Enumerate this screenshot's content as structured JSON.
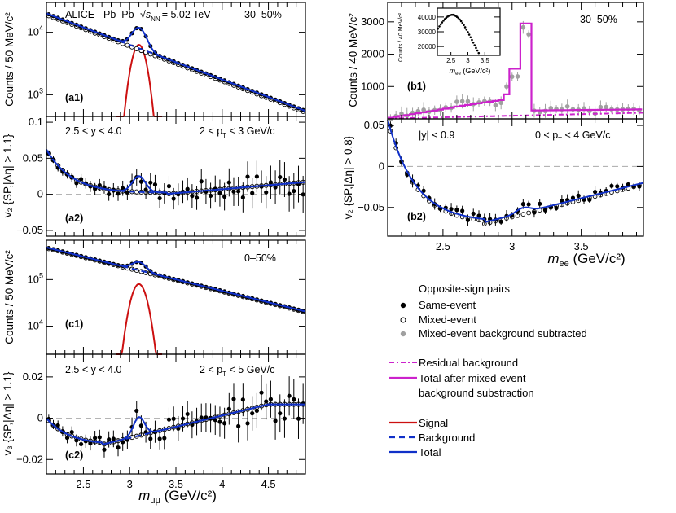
{
  "colors": {
    "signal": "#cc1010",
    "total": "#1030c8",
    "background": "#1030c8",
    "residual": "#cc22cc",
    "data_same": "#000000",
    "data_mixed": "#000000",
    "data_subtracted": "#a0a0a0"
  },
  "chart_data": [
    {
      "id": "a1",
      "type": "line",
      "label": "(a1)",
      "texts": {
        "alice": "ALICE",
        "system": "Pb–Pb",
        "energy_prefix": "√",
        "energy_s": "s",
        "energy_sub": "NN",
        "energy_value": "= 5.02 TeV",
        "centrality": "30–50%"
      },
      "ylabel": "Counts / 50 MeV/c²",
      "yscale": "log",
      "ylim": [
        450,
        30000
      ],
      "xlim": [
        2.1,
        4.9
      ],
      "y_ticks": [
        {
          "value": 1000,
          "base": "10",
          "exp": "3"
        },
        {
          "value": 10000,
          "base": "10",
          "exp": "4"
        }
      ],
      "series": {
        "same_event": "exponential falling with J/psi peak at 3.1",
        "mixed_event": "exponential falling"
      }
    },
    {
      "id": "a2",
      "type": "line",
      "label": "(a2)",
      "ylabel": "v₂ {SP,|Δη| > 1.1}",
      "texts": {
        "rapidity": "2.5 < y < 4.0",
        "pt": "2 < p",
        "pt_sub": "T",
        "pt_rest": " < 3 GeV/c"
      },
      "ylim": [
        -0.058,
        0.108
      ],
      "xlim": [
        2.1,
        4.9
      ],
      "y_ticks": [
        {
          "value": -0.05,
          "label": "−0.05"
        },
        {
          "value": 0,
          "label": "0"
        },
        {
          "value": 0.05,
          "label": "0.05"
        },
        {
          "value": 0.1,
          "label": "0.1"
        }
      ]
    },
    {
      "id": "c1",
      "type": "line",
      "label": "(c1)",
      "texts": {
        "centrality": "0–50%"
      },
      "ylabel": "Counts / 50 MeV/c²",
      "yscale": "log",
      "ylim": [
        2500,
        700000
      ],
      "xlim": [
        2.1,
        4.9
      ],
      "y_ticks": [
        {
          "value": 10000,
          "base": "10",
          "exp": "4"
        },
        {
          "value": 100000,
          "base": "10",
          "exp": "5"
        }
      ]
    },
    {
      "id": "c2",
      "type": "line",
      "label": "(c2)",
      "ylabel": "v₃ {SP,|Δη| > 1.1}",
      "texts": {
        "rapidity": "2.5 < y < 4.0",
        "pt": "2 < p",
        "pt_sub": "T",
        "pt_rest": " < 5 GeV/c"
      },
      "ylim": [
        -0.027,
        0.031
      ],
      "xlim": [
        2.1,
        4.9
      ],
      "y_ticks": [
        {
          "value": -0.02,
          "label": "−0.02"
        },
        {
          "value": 0,
          "label": "0"
        },
        {
          "value": 0.02,
          "label": "0.02"
        }
      ],
      "x_ticks": [
        {
          "value": 2.5,
          "label": "2.5"
        },
        {
          "value": 3,
          "label": "3"
        },
        {
          "value": 3.5,
          "label": "3.5"
        },
        {
          "value": 4,
          "label": "4"
        },
        {
          "value": 4.5,
          "label": "4.5"
        }
      ],
      "xlabel_main": "m",
      "xlabel_sub": "μμ",
      "xlabel_units": " (GeV/c²)"
    },
    {
      "id": "b1",
      "type": "line",
      "label": "(b1)",
      "texts": {
        "centrality": "30–50%"
      },
      "ylabel": "Counts / 40 MeV/c²",
      "ylim": [
        0,
        3600
      ],
      "xlim": [
        2.1,
        3.95
      ],
      "y_ticks": [
        {
          "value": 1000,
          "label": "1000"
        },
        {
          "value": 2000,
          "label": "2000"
        },
        {
          "value": 3000,
          "label": "3000"
        }
      ],
      "inset": {
        "ylabel": "Counts / 40 MeV/c²",
        "xlim": [
          2.1,
          3.95
        ],
        "ylim": [
          14000,
          46000
        ],
        "y_ticks": [
          {
            "value": 20000,
            "label": "20000"
          },
          {
            "value": 30000,
            "label": "30000"
          },
          {
            "value": 40000,
            "label": "40000"
          }
        ],
        "x_ticks": [
          {
            "value": 2.5,
            "label": "2.5"
          },
          {
            "value": 3,
            "label": "3"
          },
          {
            "value": 3.5,
            "label": "3.5"
          }
        ],
        "xlabel_main": "m",
        "xlabel_sub": "ee",
        "xlabel_units": " (GeV/c²)"
      }
    },
    {
      "id": "b2",
      "type": "line",
      "label": "(b2)",
      "ylabel": "v₂ {SP,|Δη| > 0.8}",
      "texts": {
        "rapidity": "|y| < 0.9",
        "pt": "0 < p",
        "pt_sub": "T",
        "pt_rest": " < 4 GeV/c"
      },
      "ylim": [
        -0.085,
        0.058
      ],
      "xlim": [
        2.1,
        3.95
      ],
      "y_ticks": [
        {
          "value": -0.05,
          "label": "−0.05"
        },
        {
          "value": 0,
          "label": "0"
        },
        {
          "value": 0.05,
          "label": "0.05"
        }
      ],
      "x_ticks": [
        {
          "value": 2.5,
          "label": "2.5"
        },
        {
          "value": 3,
          "label": "3"
        },
        {
          "value": 3.5,
          "label": "3.5"
        }
      ],
      "xlabel_main": "m",
      "xlabel_sub": "ee",
      "xlabel_units": " (GeV/c²)"
    }
  ],
  "legend": {
    "header": "Opposite-sign pairs",
    "same_event": "Same-event",
    "mixed_event": "Mixed-event",
    "subtracted": "Mixed-event background subtracted",
    "residual": "Residual background",
    "total_after_1": "Total after mixed-event",
    "total_after_2": "background substraction",
    "signal": "Signal",
    "background": "Background",
    "total": "Total"
  }
}
